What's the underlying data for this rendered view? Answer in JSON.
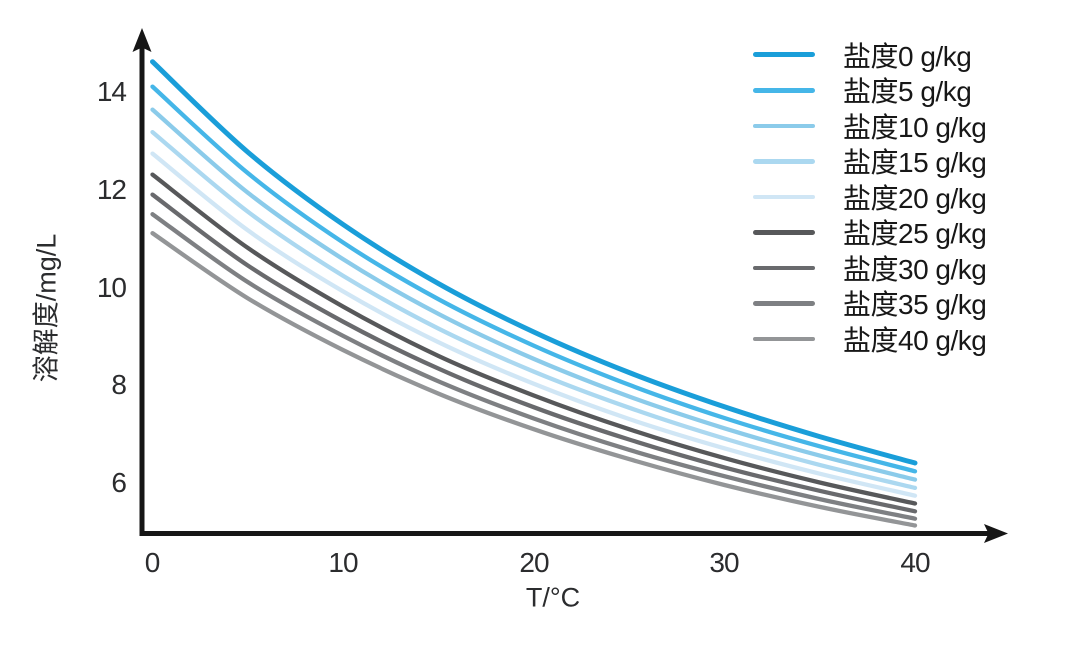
{
  "axes": {
    "x": {
      "title": "T/°C",
      "ticks": [
        "0",
        "10",
        "20",
        "30",
        "40"
      ]
    },
    "y": {
      "title": "溶解度/mg/L",
      "ticks": [
        "14",
        "12",
        "10",
        "8",
        "6"
      ]
    }
  },
  "chart_data": {
    "type": "line",
    "title": "",
    "xlabel": "T/°C",
    "ylabel": "溶解度/mg/L",
    "x": [
      0,
      5,
      10,
      15,
      20,
      25,
      30,
      35,
      40
    ],
    "x_ticks": [
      0,
      10,
      20,
      30,
      40
    ],
    "y_ticks": [
      6,
      8,
      10,
      12,
      14
    ],
    "xlim": [
      0,
      44
    ],
    "ylim": [
      5,
      15.3
    ],
    "grid": false,
    "legend_position": "upper-right",
    "axis_color": "#161616",
    "series": [
      {
        "name": "盐度0 g/kg",
        "salinity_g_per_kg": 0,
        "color": "#1A9ED9",
        "values": [
          14.62,
          12.77,
          11.29,
          10.08,
          9.09,
          8.26,
          7.56,
          6.95,
          6.41
        ]
      },
      {
        "name": "盐度5 g/kg",
        "salinity_g_per_kg": 5,
        "color": "#45B6E8",
        "values": [
          14.11,
          12.34,
          10.92,
          9.76,
          8.81,
          8.01,
          7.33,
          6.75,
          6.24
        ]
      },
      {
        "name": "盐度10 g/kg",
        "salinity_g_per_kg": 10,
        "color": "#8BCBEA",
        "values": [
          13.64,
          11.94,
          10.58,
          9.46,
          8.54,
          7.77,
          7.12,
          6.56,
          6.07
        ]
      },
      {
        "name": "盐度15 g/kg",
        "salinity_g_per_kg": 15,
        "color": "#ABD8F0",
        "values": [
          13.18,
          11.55,
          10.24,
          9.16,
          8.28,
          7.54,
          6.91,
          6.37,
          5.9
        ]
      },
      {
        "name": "盐度20 g/kg",
        "salinity_g_per_kg": 20,
        "color": "#D0E6F5",
        "values": [
          12.74,
          11.17,
          9.92,
          8.88,
          8.03,
          7.31,
          6.71,
          6.19,
          5.74
        ]
      },
      {
        "name": "盐度25 g/kg",
        "salinity_g_per_kg": 25,
        "color": "#57585A",
        "values": [
          12.31,
          10.81,
          9.61,
          8.6,
          7.79,
          7.1,
          6.51,
          6.01,
          5.58
        ]
      },
      {
        "name": "盐度30 g/kg",
        "salinity_g_per_kg": 30,
        "color": "#696A6D",
        "values": [
          11.9,
          10.45,
          9.3,
          8.34,
          7.55,
          6.89,
          6.32,
          5.84,
          5.42
        ]
      },
      {
        "name": "盐度35 g/kg",
        "salinity_g_per_kg": 35,
        "color": "#7E8083",
        "values": [
          11.5,
          10.11,
          9.01,
          8.08,
          7.32,
          6.68,
          6.14,
          5.67,
          5.27
        ]
      },
      {
        "name": "盐度40 g/kg",
        "salinity_g_per_kg": 40,
        "color": "#939597",
        "values": [
          11.11,
          9.78,
          8.72,
          7.83,
          7.1,
          6.49,
          5.96,
          5.51,
          5.13
        ]
      }
    ]
  }
}
